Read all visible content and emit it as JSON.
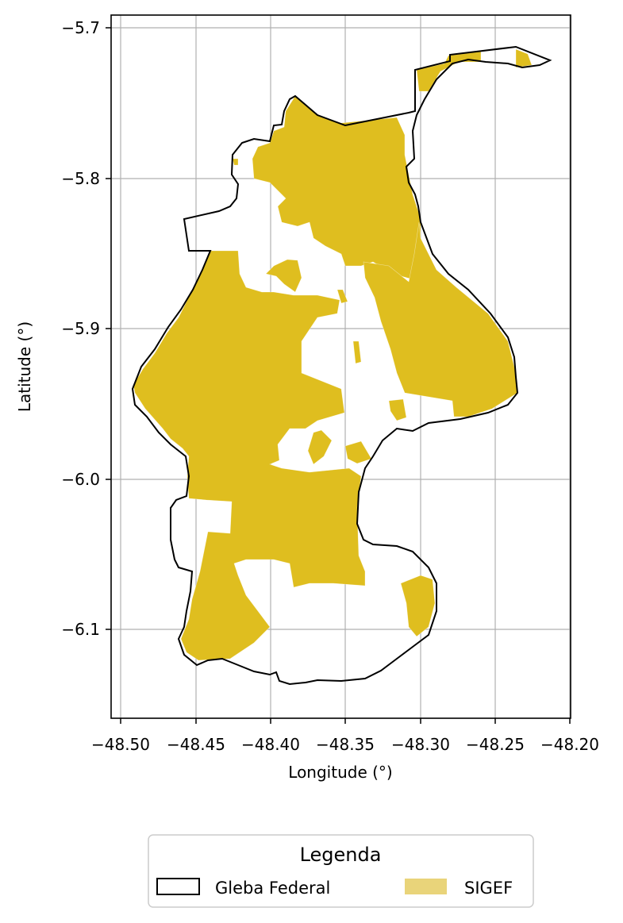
{
  "map": {
    "x_axis_label": "Longitude (°)",
    "y_axis_label": "Latitude (°)",
    "x_ticks": [
      "−48.50",
      "−48.45",
      "−48.40",
      "−48.35",
      "−48.30",
      "−48.25",
      "−48.20"
    ],
    "y_ticks": [
      "−5.7",
      "−5.8",
      "−5.9",
      "−6.0",
      "−6.1"
    ],
    "xlim": [
      -48.506,
      -48.199
    ],
    "ylim": [
      -6.161,
      -5.692
    ],
    "grid": true
  },
  "legend": {
    "title": "Legenda",
    "items": [
      {
        "label": "Gleba Federal",
        "kind": "outline",
        "color": "#000000"
      },
      {
        "label": "SIGEF",
        "kind": "fill",
        "color": "#e9d47a"
      }
    ],
    "placement": "bottom-center"
  },
  "colors": {
    "sigef_fill": "#dfbe1f",
    "boundary": "#000000",
    "grid": "#b0b0b0"
  }
}
